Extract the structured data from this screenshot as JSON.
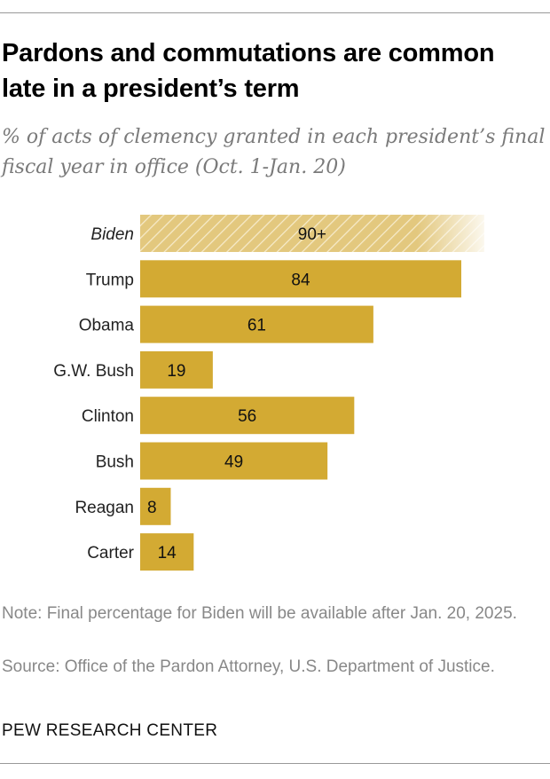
{
  "title": "Pardons and commutations are common late in a president’s term",
  "subtitle": "% of acts of clemency granted in each president’s final fiscal year in office (Oct. 1-Jan. 20)",
  "note": "Note: Final percentage for Biden will be available after Jan. 20, 2025.",
  "source": "Source: Office of the Pardon Attorney, U.S. Department of Justice.",
  "brand": "PEW RESEARCH CENTER",
  "colors": {
    "bar": "#D3AA33",
    "bar_estimate": "#E3C87E"
  },
  "chart_data": {
    "type": "bar",
    "orientation": "horizontal",
    "categories": [
      "Biden",
      "Trump",
      "Obama",
      "G.W. Bush",
      "Clinton",
      "Bush",
      "Reagan",
      "Carter"
    ],
    "values": [
      90,
      84,
      61,
      19,
      56,
      49,
      8,
      14
    ],
    "labels": [
      "90+",
      "84",
      "61",
      "19",
      "56",
      "49",
      "8",
      "14"
    ],
    "estimate": [
      true,
      false,
      false,
      false,
      false,
      false,
      false,
      false
    ],
    "xlim": [
      0,
      100
    ],
    "grid": false
  }
}
